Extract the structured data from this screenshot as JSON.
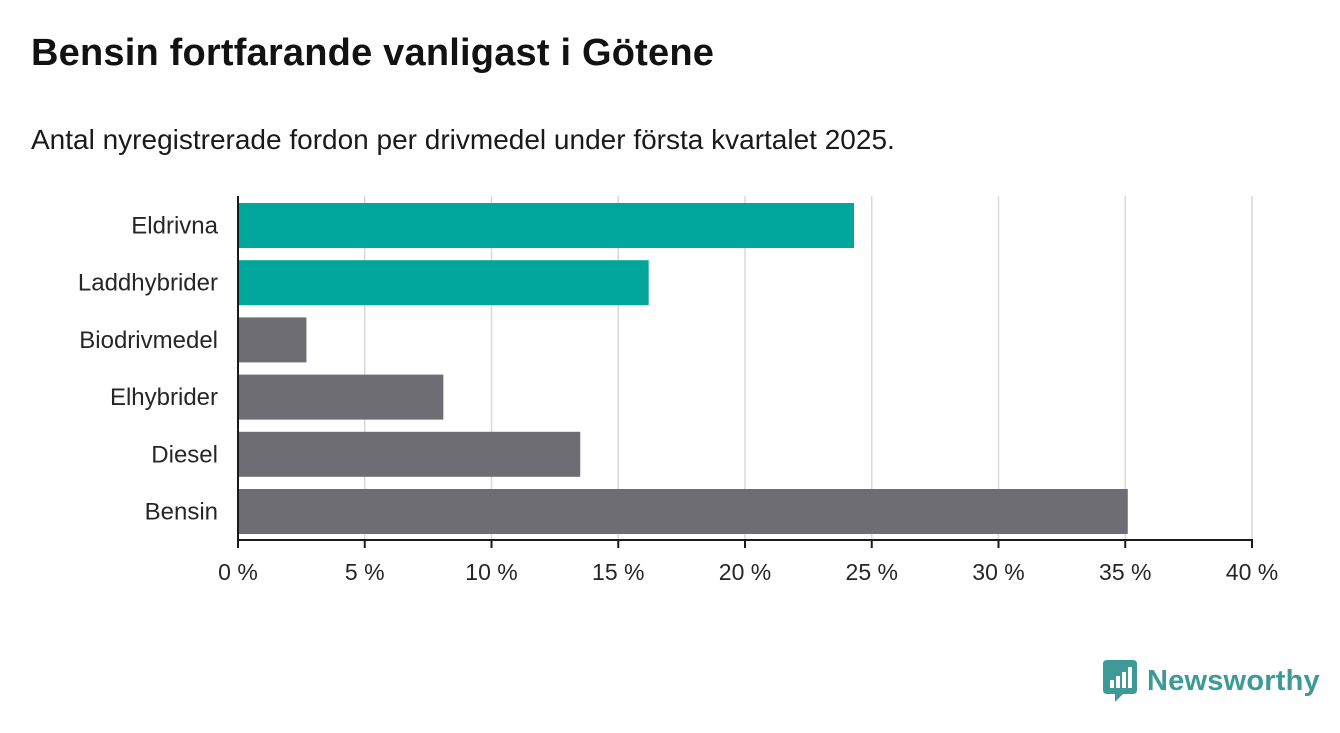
{
  "header": {
    "title": "Bensin fortfarande vanligast i Götene",
    "subtitle": "Antal nyregistrerade fordon per drivmedel under första kvartalet 2025."
  },
  "branding": {
    "logo_text": "Newsworthy",
    "logo_icon": "bar-chart-speech-bubble-icon",
    "logo_color": "#3e9a97"
  },
  "chart_data": {
    "type": "bar",
    "orientation": "horizontal",
    "categories": [
      "Eldrivna",
      "Laddhybrider",
      "Biodrivmedel",
      "Elhybrider",
      "Diesel",
      "Bensin"
    ],
    "values": [
      24.3,
      16.2,
      2.7,
      8.1,
      13.5,
      35.1
    ],
    "colors": [
      "#00a59b",
      "#00a59b",
      "#6e6d74",
      "#6e6d74",
      "#6e6d74",
      "#6e6d74"
    ],
    "xlim": [
      0,
      40
    ],
    "x_ticks": [
      0,
      5,
      10,
      15,
      20,
      25,
      30,
      35,
      40
    ],
    "x_tick_labels": [
      "0 %",
      "5 %",
      "10 %",
      "15 %",
      "20 %",
      "25 %",
      "30 %",
      "35 %",
      "40 %"
    ],
    "unit": "%",
    "grid": true,
    "legend": "none"
  }
}
